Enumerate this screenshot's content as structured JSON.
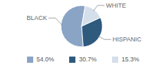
{
  "chart_data": {
    "type": "pie",
    "categories": [
      "BLACK",
      "HISPANIC",
      "WHITE"
    ],
    "values": [
      54.0,
      30.7,
      15.3
    ],
    "value_labels": [
      "54.0%",
      "30.7%",
      "15.3%"
    ],
    "colors": [
      "#8aa4c6",
      "#2e5a7e",
      "#d5dfeb"
    ],
    "legend": "bottom"
  }
}
